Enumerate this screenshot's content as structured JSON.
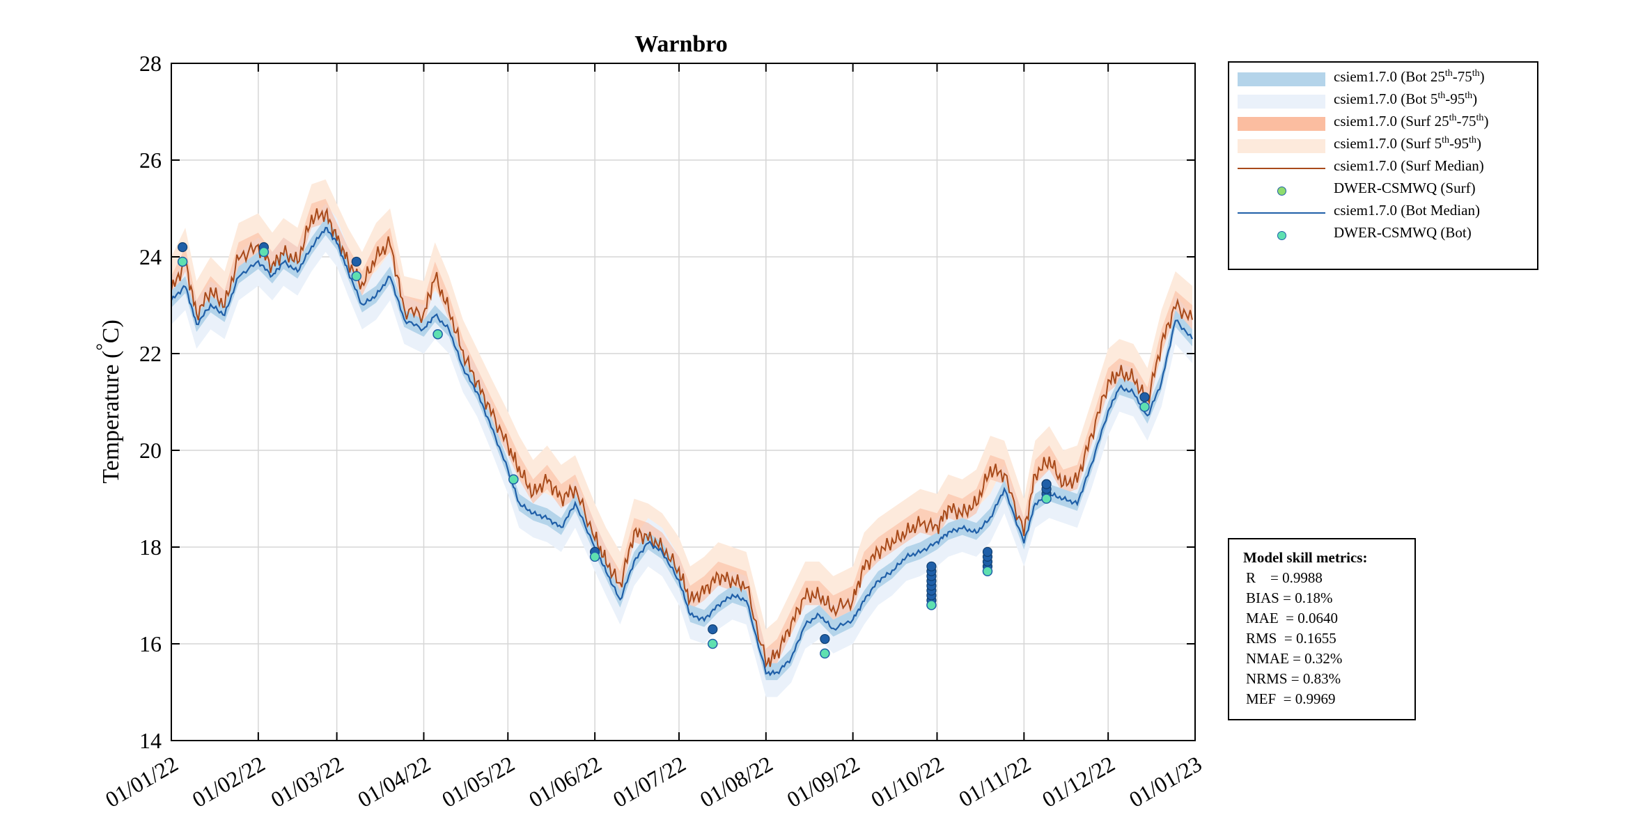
{
  "chart_data": {
    "type": "line",
    "title": "Warnbro",
    "ylabel_text": "Temperature (",
    "ylabel_degree": "°",
    "ylabel_unit": "C)",
    "xlabel": "",
    "ylim": [
      14,
      28
    ],
    "yticks": [
      14,
      16,
      18,
      20,
      22,
      24,
      26,
      28
    ],
    "xlim": [
      "2022-01-01",
      "2023-01-01"
    ],
    "xtick_labels": [
      "01/01/22",
      "01/02/22",
      "01/03/22",
      "01/04/22",
      "01/05/22",
      "01/06/22",
      "01/07/22",
      "01/08/22",
      "01/09/22",
      "01/10/22",
      "01/11/22",
      "01/12/22",
      "01/01/23"
    ],
    "xtick_days": [
      0,
      31,
      59,
      90,
      120,
      151,
      181,
      212,
      243,
      273,
      304,
      334,
      365
    ],
    "grid": true,
    "legend_placement": "outside-right",
    "colors": {
      "bot_iqr": "#b4d4ea",
      "bot_90": "#eaf1fa",
      "surf_iqr": "#fbbda0",
      "surf_90": "#fdeadc",
      "surf_median": "#a84a1a",
      "bot_median": "#1f5fa8",
      "obs_surf_fill": "#8fdc6e",
      "obs_bot_fill": "#5fe0b0",
      "obs_dark": "#1f5fa8"
    },
    "bot_median": {
      "x": [
        "2022-01-01",
        "2022-01-06",
        "2022-01-10",
        "2022-01-15",
        "2022-01-20",
        "2022-01-25",
        "2022-02-01",
        "2022-02-06",
        "2022-02-10",
        "2022-02-15",
        "2022-02-20",
        "2022-02-25",
        "2022-03-01",
        "2022-03-05",
        "2022-03-10",
        "2022-03-15",
        "2022-03-20",
        "2022-03-25",
        "2022-04-01",
        "2022-04-05",
        "2022-04-10",
        "2022-04-15",
        "2022-04-20",
        "2022-04-25",
        "2022-05-01",
        "2022-05-05",
        "2022-05-10",
        "2022-05-15",
        "2022-05-20",
        "2022-05-25",
        "2022-06-01",
        "2022-06-05",
        "2022-06-10",
        "2022-06-15",
        "2022-06-20",
        "2022-06-25",
        "2022-07-01",
        "2022-07-05",
        "2022-07-10",
        "2022-07-15",
        "2022-07-20",
        "2022-07-25",
        "2022-08-01",
        "2022-08-05",
        "2022-08-10",
        "2022-08-15",
        "2022-08-20",
        "2022-08-25",
        "2022-09-01",
        "2022-09-05",
        "2022-09-10",
        "2022-09-15",
        "2022-09-20",
        "2022-09-25",
        "2022-10-01",
        "2022-10-05",
        "2022-10-10",
        "2022-10-15",
        "2022-10-20",
        "2022-10-25",
        "2022-11-01",
        "2022-11-05",
        "2022-11-10",
        "2022-11-15",
        "2022-11-20",
        "2022-11-25",
        "2022-12-01",
        "2022-12-05",
        "2022-12-10",
        "2022-12-15",
        "2022-12-20",
        "2022-12-25",
        "2022-12-31"
      ],
      "y": [
        23.1,
        23.4,
        22.6,
        23.0,
        22.8,
        23.6,
        23.9,
        23.6,
        23.9,
        23.7,
        24.2,
        24.6,
        24.3,
        23.7,
        23.0,
        23.2,
        23.6,
        22.7,
        22.5,
        22.8,
        22.5,
        21.7,
        21.2,
        20.5,
        19.6,
        18.9,
        18.7,
        18.6,
        18.4,
        18.9,
        18.0,
        17.5,
        16.9,
        17.7,
        18.1,
        17.9,
        17.3,
        16.6,
        16.5,
        16.8,
        17.0,
        16.9,
        15.4,
        15.4,
        15.7,
        16.4,
        16.6,
        16.3,
        16.5,
        16.9,
        17.3,
        17.5,
        17.8,
        17.9,
        18.1,
        18.3,
        18.4,
        18.3,
        18.6,
        19.2,
        18.1,
        18.9,
        19.1,
        19.0,
        18.9,
        19.7,
        20.8,
        21.3,
        21.2,
        20.7,
        21.4,
        22.7,
        22.3
      ]
    },
    "surf_median": {
      "x": [
        "2022-01-01",
        "2022-01-06",
        "2022-01-10",
        "2022-01-15",
        "2022-01-20",
        "2022-01-25",
        "2022-02-01",
        "2022-02-06",
        "2022-02-10",
        "2022-02-15",
        "2022-02-20",
        "2022-02-25",
        "2022-03-01",
        "2022-03-05",
        "2022-03-10",
        "2022-03-15",
        "2022-03-20",
        "2022-03-25",
        "2022-04-01",
        "2022-04-05",
        "2022-04-10",
        "2022-04-15",
        "2022-04-20",
        "2022-04-25",
        "2022-05-01",
        "2022-05-05",
        "2022-05-10",
        "2022-05-15",
        "2022-05-20",
        "2022-05-25",
        "2022-06-01",
        "2022-06-05",
        "2022-06-10",
        "2022-06-15",
        "2022-06-20",
        "2022-06-25",
        "2022-07-01",
        "2022-07-05",
        "2022-07-10",
        "2022-07-15",
        "2022-07-20",
        "2022-07-25",
        "2022-08-01",
        "2022-08-05",
        "2022-08-10",
        "2022-08-15",
        "2022-08-20",
        "2022-08-25",
        "2022-09-01",
        "2022-09-05",
        "2022-09-10",
        "2022-09-15",
        "2022-09-20",
        "2022-09-25",
        "2022-10-01",
        "2022-10-05",
        "2022-10-10",
        "2022-10-15",
        "2022-10-20",
        "2022-10-25",
        "2022-11-01",
        "2022-11-05",
        "2022-11-10",
        "2022-11-15",
        "2022-11-20",
        "2022-11-25",
        "2022-12-01",
        "2022-12-05",
        "2022-12-10",
        "2022-12-15",
        "2022-12-20",
        "2022-12-25",
        "2022-12-31"
      ],
      "y": [
        23.3,
        23.9,
        22.8,
        23.3,
        23.0,
        24.0,
        24.2,
        23.8,
        24.1,
        23.9,
        24.8,
        24.9,
        24.4,
        23.9,
        23.4,
        24.0,
        24.3,
        22.9,
        22.8,
        23.6,
        22.9,
        22.0,
        21.4,
        20.8,
        20.1,
        19.6,
        19.1,
        19.4,
        19.0,
        19.2,
        18.2,
        17.7,
        17.2,
        18.3,
        18.2,
        18.0,
        17.5,
        16.9,
        17.1,
        17.4,
        17.3,
        17.2,
        15.6,
        15.8,
        16.4,
        17.0,
        17.0,
        16.7,
        16.9,
        17.6,
        17.9,
        18.1,
        18.3,
        18.5,
        18.4,
        18.8,
        18.7,
        18.9,
        19.6,
        19.5,
        18.3,
        19.5,
        19.8,
        19.3,
        19.4,
        20.3,
        21.4,
        21.6,
        21.5,
        21.0,
        22.2,
        23.0,
        22.7
      ]
    },
    "obs_surf": {
      "x": [
        "2022-01-05",
        "2022-02-03",
        "2022-03-08",
        "2022-04-06",
        "2022-05-03",
        "2022-06-01",
        "2022-07-13",
        "2022-08-22",
        "2022-09-29",
        "2022-10-19",
        "2022-11-09",
        "2022-12-14"
      ],
      "y": [
        24.2,
        24.2,
        23.9,
        22.4,
        19.4,
        17.9,
        16.3,
        16.1,
        17.6,
        17.9,
        19.3,
        21.1
      ]
    },
    "obs_bot": {
      "x": [
        "2022-01-05",
        "2022-02-03",
        "2022-03-08",
        "2022-04-06",
        "2022-05-03",
        "2022-06-01",
        "2022-07-13",
        "2022-08-22",
        "2022-09-29",
        "2022-10-19",
        "2022-11-09",
        "2022-12-14"
      ],
      "y": [
        23.9,
        24.1,
        23.6,
        22.4,
        19.4,
        17.8,
        16.0,
        15.8,
        16.8,
        17.5,
        19.0,
        20.9
      ]
    },
    "obs_profile_extra": [
      {
        "x": "2022-09-29",
        "values": [
          16.9,
          17.0,
          17.1,
          17.2,
          17.3,
          17.4,
          17.5
        ]
      },
      {
        "x": "2022-10-19",
        "values": [
          17.6,
          17.7,
          17.8
        ]
      },
      {
        "x": "2022-11-09",
        "values": [
          19.1,
          19.2,
          19.3
        ]
      }
    ]
  },
  "legend": {
    "items": [
      {
        "label_main": "csiem1.7.0 (Bot 25",
        "sup1": "th",
        "label_mid": "-75",
        "sup2": "th",
        "label_end": ")",
        "kind": "band",
        "color_key": "bot_iqr"
      },
      {
        "label_main": "csiem1.7.0 (Bot 5",
        "sup1": "th",
        "label_mid": "-95",
        "sup2": "th",
        "label_end": ")",
        "kind": "band",
        "color_key": "bot_90"
      },
      {
        "label_main": "csiem1.7.0 (Surf 25",
        "sup1": "th",
        "label_mid": "-75",
        "sup2": "th",
        "label_end": ")",
        "kind": "band",
        "color_key": "surf_iqr"
      },
      {
        "label_main": "csiem1.7.0 (Surf 5",
        "sup1": "th",
        "label_mid": "-95",
        "sup2": "th",
        "label_end": ")",
        "kind": "band",
        "color_key": "surf_90"
      },
      {
        "label_main": "csiem1.7.0 (Surf Median)",
        "kind": "line",
        "color_key": "surf_median"
      },
      {
        "label_main": "DWER-CSMWQ (Surf)",
        "kind": "marker",
        "color_key": "obs_surf_fill"
      },
      {
        "label_main": "csiem1.7.0 (Bot Median)",
        "kind": "line",
        "color_key": "bot_median"
      },
      {
        "label_main": "DWER-CSMWQ (Bot)",
        "kind": "marker",
        "color_key": "obs_bot_fill"
      }
    ]
  },
  "metrics": {
    "title": "Model skill metrics:",
    "rows": [
      "R    = 0.9988",
      "BIAS = 0.18%",
      "MAE  = 0.0640",
      "RMS  = 0.1655",
      "NMAE = 0.32%",
      "NRMS = 0.83%",
      "MEF  = 0.9969"
    ]
  }
}
